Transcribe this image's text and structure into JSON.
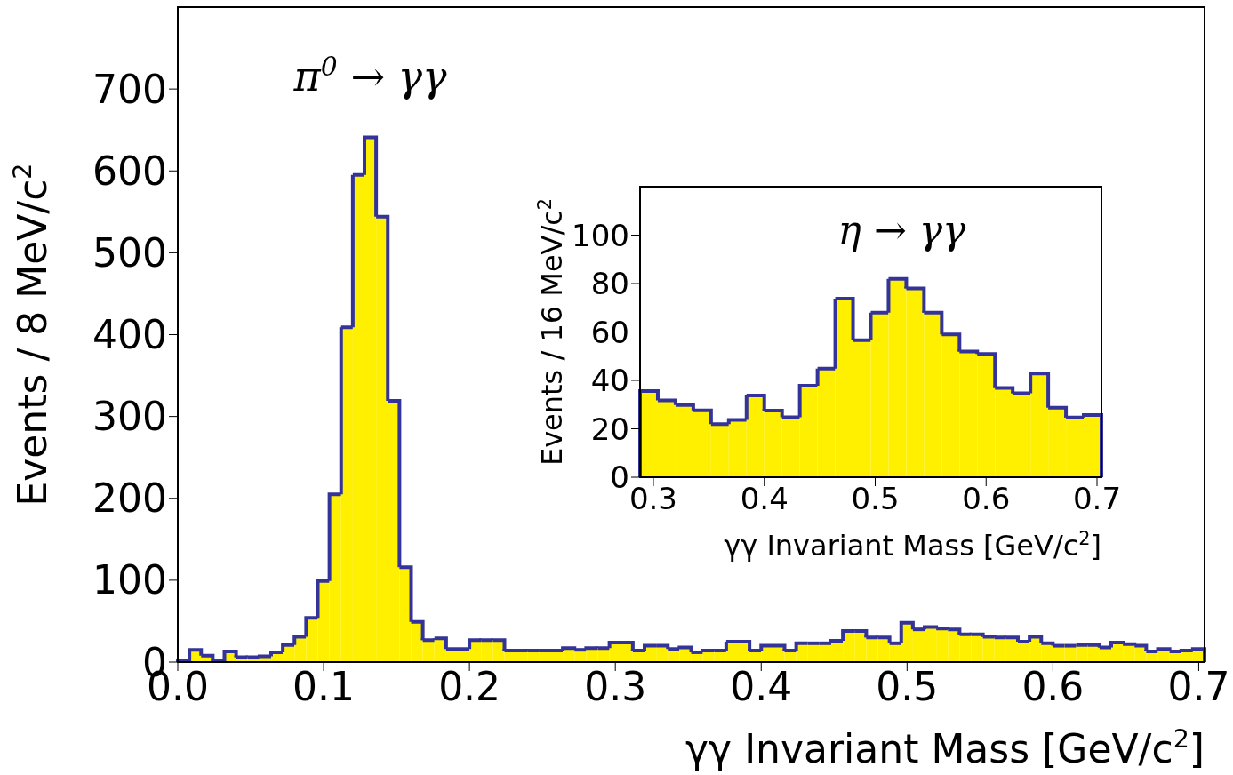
{
  "chart_data": [
    {
      "type": "histogram",
      "xlabel": "γγ Invariant Mass [GeV/c$^{2}$]",
      "ylabel": "Events / 8 MeV/c$^{2}$",
      "annotations": [
        {
          "text": "π$^{0}$ → γγ",
          "x": 0.132,
          "y": 641
        }
      ],
      "color": "#fff000",
      "bins": [
        0,
        0.008,
        0.016,
        0.024,
        0.032,
        0.04,
        0.048,
        0.056,
        0.064,
        0.072,
        0.08,
        0.088,
        0.096,
        0.104,
        0.112,
        0.12,
        0.128,
        0.136,
        0.144,
        0.152,
        0.16,
        0.168,
        0.176,
        0.184,
        0.192,
        0.2,
        0.208,
        0.216,
        0.224,
        0.232,
        0.24,
        0.248,
        0.256,
        0.264,
        0.272,
        0.28,
        0.288,
        0.296,
        0.304,
        0.312,
        0.32,
        0.328,
        0.336,
        0.344,
        0.352,
        0.36,
        0.368,
        0.376,
        0.384,
        0.392,
        0.4,
        0.408,
        0.416,
        0.424,
        0.432,
        0.44,
        0.448,
        0.456,
        0.464,
        0.472,
        0.48,
        0.488,
        0.496,
        0.504,
        0.512,
        0.52,
        0.528,
        0.536,
        0.544,
        0.552,
        0.56,
        0.568,
        0.576,
        0.584,
        0.592,
        0.6,
        0.608,
        0.616,
        0.624,
        0.632,
        0.64,
        0.648,
        0.656,
        0.664,
        0.672,
        0.68,
        0.688,
        0.696,
        0.704
      ],
      "values": [
        1,
        15,
        8,
        1,
        13,
        6,
        6,
        7,
        12,
        21,
        31,
        54,
        99,
        205,
        409,
        595,
        641,
        544,
        319,
        116,
        49,
        27,
        29,
        16,
        16,
        27,
        27,
        27,
        14,
        14,
        14,
        14,
        14,
        17,
        15,
        17,
        17,
        24,
        24,
        14,
        20,
        20,
        16,
        18,
        12,
        14,
        14,
        25,
        25,
        14,
        20,
        20,
        14,
        23,
        23,
        23,
        26,
        38,
        38,
        30,
        30,
        23,
        48,
        40,
        43,
        41,
        40,
        34,
        34,
        31,
        30,
        30,
        25,
        31,
        23,
        20,
        20,
        21,
        21,
        18,
        24,
        22,
        20,
        13,
        16,
        13,
        14,
        16
      ],
      "xlim": [
        0,
        0.704
      ],
      "ylim": [
        0,
        800
      ],
      "xticks": [
        {
          "value": 0,
          "label": "0.0"
        },
        {
          "value": 0.1,
          "label": "0.1"
        },
        {
          "value": 0.2,
          "label": "0.2"
        },
        {
          "value": 0.3,
          "label": "0.3"
        },
        {
          "value": 0.4,
          "label": "0.4"
        },
        {
          "value": 0.5,
          "label": "0.5"
        },
        {
          "value": 0.6,
          "label": "0.6"
        },
        {
          "value": 0.7,
          "label": "0.7"
        }
      ],
      "yticks": [
        0,
        100,
        200,
        300,
        400,
        500,
        600,
        700
      ]
    },
    {
      "type": "histogram",
      "xlabel": "γγ Invariant Mass [GeV/c$^{2}$]",
      "ylabel": "Events / 16 MeV/c$^{2}$",
      "annotations": [
        {
          "text": "η → γγ",
          "x": 0.52,
          "y": 81.9
        }
      ],
      "color": "#fff000",
      "bins": [
        0.288,
        0.304,
        0.32,
        0.336,
        0.352,
        0.368,
        0.384,
        0.4,
        0.416,
        0.432,
        0.448,
        0.464,
        0.48,
        0.496,
        0.512,
        0.528,
        0.544,
        0.56,
        0.576,
        0.592,
        0.608,
        0.624,
        0.64,
        0.656,
        0.672,
        0.688,
        0.704
      ],
      "values": [
        35.6,
        31.7,
        29.8,
        27.6,
        21.9,
        23.7,
        33.8,
        27.5,
        24.8,
        37.8,
        44.9,
        73.8,
        56.6,
        68,
        81.9,
        78,
        68,
        59,
        51.9,
        50.9,
        36.9,
        34.7,
        42.8,
        28.7,
        24.7,
        25.7
      ],
      "xlim": [
        0.288,
        0.704
      ],
      "ylim": [
        0,
        120
      ],
      "xticks": [
        0.3,
        0.4,
        0.5,
        0.6,
        0.7
      ],
      "yticks": [
        0,
        20,
        40,
        60,
        80,
        100
      ]
    }
  ]
}
